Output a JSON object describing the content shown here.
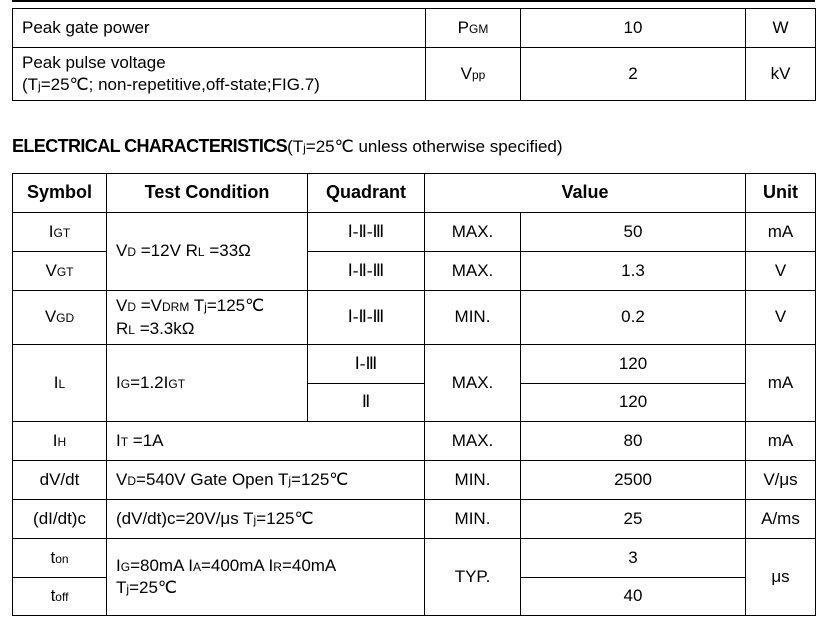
{
  "ratings": {
    "rows": [
      {
        "parameter": [
          {
            "t": "Peak gate power"
          }
        ],
        "symbol": [
          {
            "t": "P"
          },
          {
            "t": "GM",
            "sub": true
          }
        ],
        "value": "10",
        "unit": "W"
      },
      {
        "parameter_line1": "Peak pulse voltage",
        "parameter": [
          {
            "t": "(T"
          },
          {
            "t": "j",
            "sub": true
          },
          {
            "t": "=25℃; non-repetitive,off-state;FIG.7)"
          }
        ],
        "symbol": [
          {
            "t": "V"
          },
          {
            "t": "pp",
            "sub": true
          }
        ],
        "value": "2",
        "unit": "kV"
      }
    ]
  },
  "section": {
    "title": "ELECTRICAL CHARACTERISTICS",
    "condition": [
      {
        "t": "(T"
      },
      {
        "t": "j",
        "sub": true
      },
      {
        "t": "=25℃ unless otherwise specified)"
      }
    ]
  },
  "electrical": {
    "headers": {
      "symbol": "Symbol",
      "test_condition": "Test Condition",
      "quadrant": "Quadrant",
      "value": "Value",
      "unit": "Unit"
    },
    "igt": {
      "symbol": [
        {
          "t": "I"
        },
        {
          "t": "GT",
          "sub": true
        }
      ],
      "quadrant": "Ⅰ-Ⅱ-Ⅲ",
      "limit": "MAX.",
      "value": "50",
      "unit": "mA"
    },
    "vgt": {
      "symbol": [
        {
          "t": "V"
        },
        {
          "t": "GT",
          "sub": true
        }
      ],
      "quadrant": "Ⅰ-Ⅱ-Ⅲ",
      "limit": "MAX.",
      "value": "1.3",
      "unit": "V"
    },
    "igt_vgt_condition": [
      {
        "t": "V"
      },
      {
        "t": "D",
        "sub": true
      },
      {
        "t": " =12V R"
      },
      {
        "t": "L",
        "sub": true
      },
      {
        "t": " =33Ω"
      }
    ],
    "vgd": {
      "symbol": [
        {
          "t": "V"
        },
        {
          "t": "GD",
          "sub": true
        }
      ],
      "condition_line1": [
        {
          "t": "V"
        },
        {
          "t": "D",
          "sub": true
        },
        {
          "t": " =V"
        },
        {
          "t": "DRM",
          "sub": true
        },
        {
          "t": " T"
        },
        {
          "t": "j",
          "sub": true
        },
        {
          "t": "=125℃"
        }
      ],
      "condition_line2": [
        {
          "t": "R"
        },
        {
          "t": "L",
          "sub": true
        },
        {
          "t": " =3.3kΩ"
        }
      ],
      "quadrant": "Ⅰ-Ⅱ-Ⅲ",
      "limit": "MIN.",
      "value": "0.2",
      "unit": "V"
    },
    "il": {
      "symbol": [
        {
          "t": "I"
        },
        {
          "t": "L",
          "sub": true
        }
      ],
      "condition": [
        {
          "t": "I"
        },
        {
          "t": "G",
          "sub": true
        },
        {
          "t": "=1.2I"
        },
        {
          "t": "GT",
          "sub": true
        }
      ],
      "quadrant_a": "Ⅰ-Ⅲ",
      "value_a": "120",
      "quadrant_b": "Ⅱ",
      "value_b": "120",
      "limit": "MAX.",
      "unit": "mA"
    },
    "ih": {
      "symbol": [
        {
          "t": "I"
        },
        {
          "t": "H",
          "sub": true
        }
      ],
      "condition": [
        {
          "t": "I"
        },
        {
          "t": "T",
          "sub": true
        },
        {
          "t": " =1A"
        }
      ],
      "limit": "MAX.",
      "value": "80",
      "unit": "mA"
    },
    "dvdt": {
      "symbol": [
        {
          "t": "dV/dt"
        }
      ],
      "condition": [
        {
          "t": "V"
        },
        {
          "t": "D",
          "sub": true
        },
        {
          "t": "=540V Gate Open T"
        },
        {
          "t": "j",
          "sub": true
        },
        {
          "t": "=125℃"
        }
      ],
      "limit": "MIN.",
      "value": "2500",
      "unit": "V/μs"
    },
    "didt": {
      "symbol": [
        {
          "t": "(dI/dt)c"
        }
      ],
      "condition": [
        {
          "t": "(dV/dt)c=20V/μs T"
        },
        {
          "t": "j",
          "sub": true
        },
        {
          "t": "=125℃"
        }
      ],
      "limit": "MIN.",
      "value": "25",
      "unit": "A/ms"
    },
    "switching": {
      "ton_symbol": [
        {
          "t": "t"
        },
        {
          "t": "on",
          "sub": true
        }
      ],
      "toff_symbol": [
        {
          "t": "t"
        },
        {
          "t": "off",
          "sub": true
        }
      ],
      "condition_line1": [
        {
          "t": "I"
        },
        {
          "t": "G",
          "sub": true
        },
        {
          "t": "=80mA I"
        },
        {
          "t": "A",
          "sub": true
        },
        {
          "t": "=400mA I"
        },
        {
          "t": "R",
          "sub": true
        },
        {
          "t": "=40mA"
        }
      ],
      "condition_line2": [
        {
          "t": "T"
        },
        {
          "t": "j",
          "sub": true
        },
        {
          "t": "=25℃"
        }
      ],
      "limit": "TYP.",
      "ton_value": "3",
      "toff_value": "40",
      "unit": "μs"
    }
  }
}
